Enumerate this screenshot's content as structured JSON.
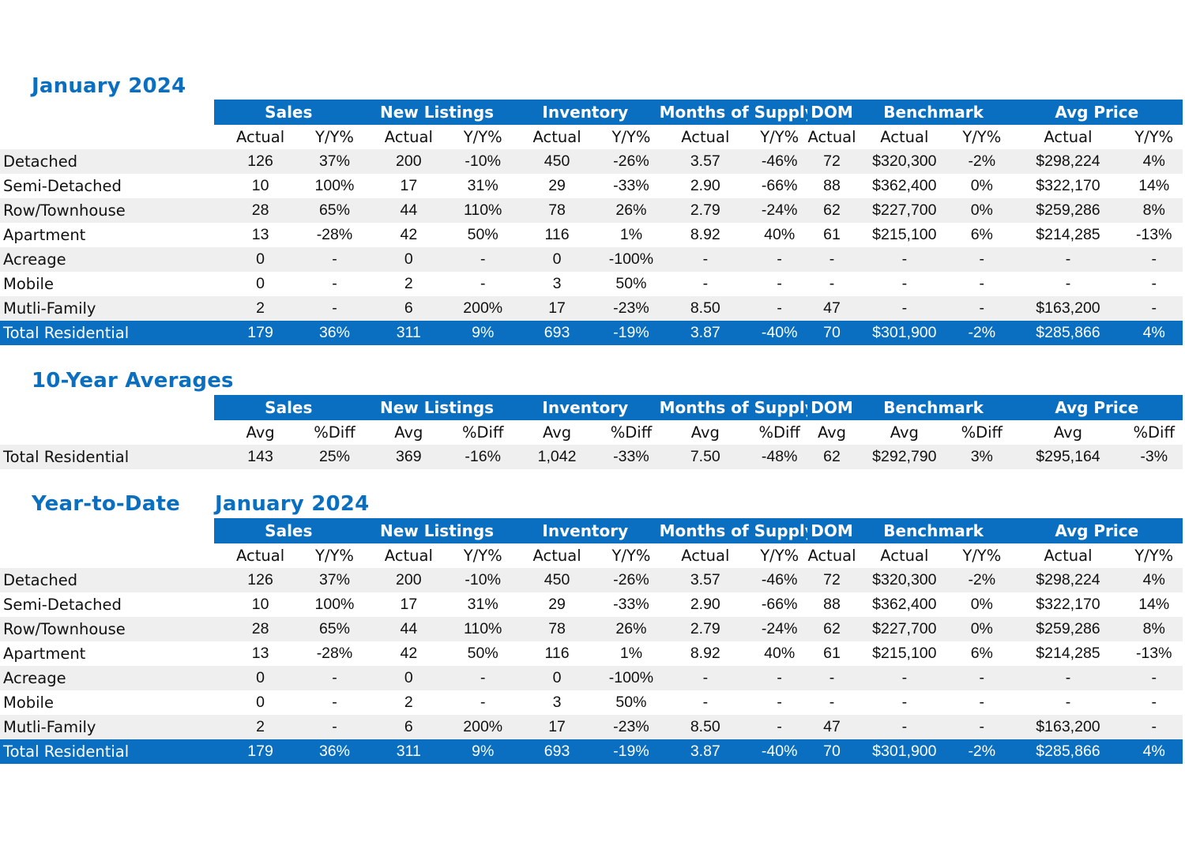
{
  "jan": {
    "title": "January 2024",
    "groups": [
      "Sales",
      "New Listings",
      "Inventory",
      "Months of Supply",
      "DOM",
      "Benchmark",
      "Avg Price"
    ],
    "subheads": [
      "Actual",
      "Y/Y%",
      "Actual",
      "Y/Y%",
      "Actual",
      "Y/Y%",
      "Actual",
      "Y/Y%",
      "Actual",
      "Actual",
      "Y/Y%",
      "Actual",
      "Y/Y%"
    ],
    "rows": [
      {
        "label": "Detached",
        "cells": [
          "126",
          "37%",
          "200",
          "-10%",
          "450",
          "-26%",
          "3.57",
          "-46%",
          "72",
          "$320,300",
          "-2%",
          "$298,224",
          "4%"
        ]
      },
      {
        "label": "Semi-Detached",
        "cells": [
          "10",
          "100%",
          "17",
          "31%",
          "29",
          "-33%",
          "2.90",
          "-66%",
          "88",
          "$362,400",
          "0%",
          "$322,170",
          "14%"
        ]
      },
      {
        "label": "Row/Townhouse",
        "cells": [
          "28",
          "65%",
          "44",
          "110%",
          "78",
          "26%",
          "2.79",
          "-24%",
          "62",
          "$227,700",
          "0%",
          "$259,286",
          "8%"
        ]
      },
      {
        "label": "Apartment",
        "cells": [
          "13",
          "-28%",
          "42",
          "50%",
          "116",
          "1%",
          "8.92",
          "40%",
          "61",
          "$215,100",
          "6%",
          "$214,285",
          "-13%"
        ]
      },
      {
        "label": "Acreage",
        "cells": [
          "0",
          "-",
          "0",
          "-",
          "0",
          "-100%",
          "-",
          "-",
          "-",
          "-",
          "-",
          "-",
          "-"
        ]
      },
      {
        "label": "Mobile",
        "cells": [
          "0",
          "-",
          "2",
          "-",
          "3",
          "50%",
          "-",
          "-",
          "-",
          "-",
          "-",
          "-",
          "-"
        ]
      },
      {
        "label": "Mutli-Family",
        "cells": [
          "2",
          "-",
          "6",
          "200%",
          "17",
          "-23%",
          "8.50",
          "-",
          "47",
          "-",
          "-",
          "$163,200",
          "-"
        ]
      },
      {
        "label": "Total Residential",
        "cells": [
          "179",
          "36%",
          "311",
          "9%",
          "693",
          "-19%",
          "3.87",
          "-40%",
          "70",
          "$301,900",
          "-2%",
          "$285,866",
          "4%"
        ]
      }
    ]
  },
  "avg": {
    "title": "10-Year Averages",
    "groups": [
      "Sales",
      "New Listings",
      "Inventory",
      "Months of Supply",
      "DOM",
      "Benchmark",
      "Avg Price"
    ],
    "subheads": [
      "Avg",
      "%Diff",
      "Avg",
      "%Diff",
      "Avg",
      "%Diff",
      "Avg",
      "%Diff",
      "Avg",
      "Avg",
      "%Diff",
      "Avg",
      "%Diff"
    ],
    "rows": [
      {
        "label": "Total Residential",
        "cells": [
          "143",
          "25%",
          "369",
          "-16%",
          "1,042",
          "-33%",
          "7.50",
          "-48%",
          "62",
          "$292,790",
          "3%",
          "$295,164",
          "-3%"
        ]
      }
    ]
  },
  "ytd": {
    "title": "Year-to-Date",
    "subtitle": "January 2024",
    "groups": [
      "Sales",
      "New Listings",
      "Inventory",
      "Months of Supply",
      "DOM",
      "Benchmark",
      "Avg Price"
    ],
    "subheads": [
      "Actual",
      "Y/Y%",
      "Actual",
      "Y/Y%",
      "Actual",
      "Y/Y%",
      "Actual",
      "Y/Y%",
      "Actual",
      "Actual",
      "Y/Y%",
      "Actual",
      "Y/Y%"
    ],
    "rows": [
      {
        "label": "Detached",
        "cells": [
          "126",
          "37%",
          "200",
          "-10%",
          "450",
          "-26%",
          "3.57",
          "-46%",
          "72",
          "$320,300",
          "-2%",
          "$298,224",
          "4%"
        ]
      },
      {
        "label": "Semi-Detached",
        "cells": [
          "10",
          "100%",
          "17",
          "31%",
          "29",
          "-33%",
          "2.90",
          "-66%",
          "88",
          "$362,400",
          "0%",
          "$322,170",
          "14%"
        ]
      },
      {
        "label": "Row/Townhouse",
        "cells": [
          "28",
          "65%",
          "44",
          "110%",
          "78",
          "26%",
          "2.79",
          "-24%",
          "62",
          "$227,700",
          "0%",
          "$259,286",
          "8%"
        ]
      },
      {
        "label": "Apartment",
        "cells": [
          "13",
          "-28%",
          "42",
          "50%",
          "116",
          "1%",
          "8.92",
          "40%",
          "61",
          "$215,100",
          "6%",
          "$214,285",
          "-13%"
        ]
      },
      {
        "label": "Acreage",
        "cells": [
          "0",
          "-",
          "0",
          "-",
          "0",
          "-100%",
          "-",
          "-",
          "-",
          "-",
          "-",
          "-",
          "-"
        ]
      },
      {
        "label": "Mobile",
        "cells": [
          "0",
          "-",
          "2",
          "-",
          "3",
          "50%",
          "-",
          "-",
          "-",
          "-",
          "-",
          "-",
          "-"
        ]
      },
      {
        "label": "Mutli-Family",
        "cells": [
          "2",
          "-",
          "6",
          "200%",
          "17",
          "-23%",
          "8.50",
          "-",
          "47",
          "-",
          "-",
          "$163,200",
          "-"
        ]
      },
      {
        "label": "Total Residential",
        "cells": [
          "179",
          "36%",
          "311",
          "9%",
          "693",
          "-19%",
          "3.87",
          "-40%",
          "70",
          "$301,900",
          "-2%",
          "$285,866",
          "4%"
        ]
      }
    ]
  },
  "colors": {
    "accent": "#0a6fc0",
    "alt_row": "#efefef"
  }
}
